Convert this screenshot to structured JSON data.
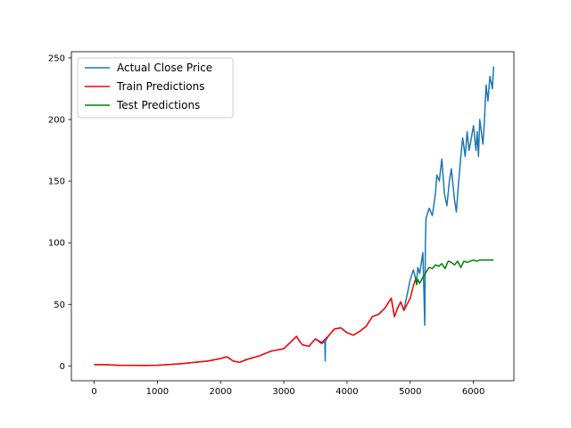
{
  "chart_data": {
    "type": "line",
    "title": "",
    "xlabel": "",
    "ylabel": "",
    "xlim": [
      -360,
      6640
    ],
    "ylim": [
      -12,
      255
    ],
    "x_ticks": [
      0,
      1000,
      2000,
      3000,
      4000,
      5000,
      6000
    ],
    "x_tick_labels": [
      "0",
      "1000",
      "2000",
      "3000",
      "4000",
      "5000",
      "6000"
    ],
    "y_ticks": [
      0,
      50,
      100,
      150,
      200,
      250
    ],
    "y_tick_labels": [
      "0",
      "50",
      "100",
      "150",
      "200",
      "250"
    ],
    "grid": false,
    "legend_position": "top-left",
    "series": [
      {
        "name": "Actual Close Price",
        "color": "#1f77b4",
        "x": [
          0,
          200,
          400,
          600,
          800,
          1000,
          1200,
          1400,
          1600,
          1800,
          2000,
          2100,
          2200,
          2300,
          2400,
          2600,
          2800,
          3000,
          3100,
          3200,
          3250,
          3300,
          3400,
          3500,
          3600,
          3650,
          3655,
          3660,
          3700,
          3800,
          3900,
          4000,
          4100,
          4200,
          4300,
          4400,
          4500,
          4600,
          4700,
          4750,
          4800,
          4850,
          4900,
          5000,
          5050,
          5080,
          5100,
          5120,
          5150,
          5200,
          5230,
          5240,
          5250,
          5300,
          5350,
          5400,
          5420,
          5460,
          5500,
          5540,
          5580,
          5620,
          5650,
          5700,
          5730,
          5760,
          5800,
          5830,
          5870,
          5900,
          5930,
          5950,
          6000,
          6040,
          6060,
          6080,
          6100,
          6150,
          6170,
          6200,
          6230,
          6260,
          6300,
          6320
        ],
        "y": [
          1.0,
          1.0,
          0.5,
          0.5,
          0.4,
          0.6,
          1.2,
          2.0,
          3.0,
          4.0,
          6.0,
          7.5,
          4.0,
          3.0,
          5.0,
          8.0,
          12.0,
          14.0,
          19.0,
          24.0,
          20.0,
          17.0,
          16.0,
          22.0,
          18.0,
          20.0,
          4.0,
          20.0,
          24.0,
          30.0,
          31.0,
          27.0,
          25.0,
          28.0,
          32.0,
          40.0,
          42.0,
          47.0,
          55.0,
          40.0,
          47.0,
          52.0,
          45.0,
          70.0,
          78.0,
          72.0,
          68.0,
          80.0,
          75.0,
          92.0,
          33.0,
          100.0,
          120.0,
          128.0,
          122.0,
          140.0,
          155.0,
          150.0,
          168.0,
          140.0,
          130.0,
          150.0,
          160.0,
          135.0,
          125.0,
          145.0,
          170.0,
          185.0,
          170.0,
          190.0,
          175.0,
          180.0,
          195.0,
          175.0,
          190.0,
          170.0,
          200.0,
          180.0,
          195.0,
          228.0,
          215.0,
          235.0,
          225.0,
          243.0
        ]
      },
      {
        "name": "Train Predictions",
        "color": "#ff0000",
        "x": [
          0,
          200,
          400,
          600,
          800,
          1000,
          1200,
          1400,
          1600,
          1800,
          2000,
          2100,
          2200,
          2300,
          2400,
          2600,
          2800,
          3000,
          3100,
          3200,
          3250,
          3300,
          3400,
          3500,
          3600,
          3700,
          3800,
          3900,
          4000,
          4100,
          4200,
          4300,
          4400,
          4500,
          4600,
          4700,
          4750,
          4800,
          4850,
          4900,
          4950,
          5000,
          5050,
          5080
        ],
        "y": [
          1.0,
          1.0,
          0.5,
          0.5,
          0.4,
          0.6,
          1.2,
          2.0,
          3.0,
          4.0,
          6.0,
          7.5,
          4.0,
          3.0,
          5.0,
          8.0,
          12.0,
          14.0,
          19.0,
          24.0,
          20.0,
          17.0,
          16.0,
          22.0,
          19.0,
          24.0,
          30.0,
          31.0,
          27.0,
          25.0,
          28.0,
          32.0,
          40.0,
          42.0,
          47.0,
          55.0,
          40.0,
          47.0,
          52.0,
          45.0,
          50.0,
          55.0,
          65.0,
          70.0
        ]
      },
      {
        "name": "Test Predictions",
        "color": "#008000",
        "x": [
          5080,
          5100,
          5120,
          5150,
          5200,
          5250,
          5300,
          5350,
          5400,
          5450,
          5500,
          5550,
          5600,
          5650,
          5700,
          5750,
          5800,
          5850,
          5900,
          5950,
          6000,
          6050,
          6100,
          6150,
          6200,
          6250,
          6300,
          6320
        ],
        "y": [
          72.0,
          66.0,
          70.0,
          67.0,
          72.0,
          76.0,
          80.0,
          79.0,
          82.0,
          81.0,
          83.0,
          79.0,
          85.0,
          84.0,
          82.0,
          85.0,
          80.0,
          85.0,
          84.0,
          85.0,
          86.0,
          85.0,
          86.0,
          86.0,
          86.0,
          86.0,
          86.0,
          86.0
        ]
      }
    ]
  }
}
